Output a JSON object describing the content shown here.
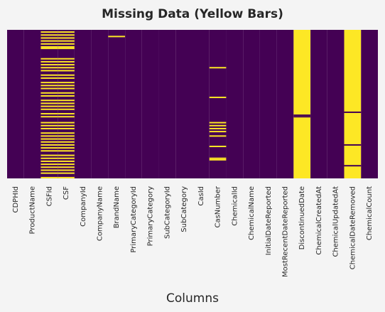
{
  "chart_data": {
    "type": "heatmap",
    "title": "Missing Data (Yellow Bars)",
    "xlabel": "Columns",
    "ylabel": "",
    "colors": {
      "present": "#440154",
      "missing": "#fde725"
    },
    "columns": [
      "CDPHId",
      "ProductName",
      "CSFId",
      "CSF",
      "CompanyId",
      "CompanyName",
      "BrandName",
      "PrimaryCategoryId",
      "PrimaryCategory",
      "SubCategoryId",
      "SubCategory",
      "CasId",
      "CasNumber",
      "ChemicalId",
      "ChemicalName",
      "InitialDateReported",
      "MostRecentDateReported",
      "DiscontinuedDate",
      "ChemicalCreatedAt",
      "ChemicalUpdatedAt",
      "ChemicalDateRemoved",
      "ChemicalCount"
    ],
    "missing_rows_fraction": {
      "CSFId": [
        0.01,
        0.03,
        0.05,
        0.07,
        0.09,
        0.11,
        0.12,
        0.19,
        0.21,
        0.23,
        0.25,
        0.27,
        0.3,
        0.32,
        0.35,
        0.37,
        0.39,
        0.42,
        0.44,
        0.47,
        0.49,
        0.51,
        0.53,
        0.56,
        0.58,
        0.62,
        0.64,
        0.66,
        0.69,
        0.71,
        0.73,
        0.75,
        0.77,
        0.79,
        0.81,
        0.84,
        0.86,
        0.88,
        0.9,
        0.92,
        0.94,
        0.96,
        0.99
      ],
      "CSF": [
        0.01,
        0.03,
        0.05,
        0.07,
        0.09,
        0.11,
        0.12,
        0.19,
        0.21,
        0.23,
        0.25,
        0.27,
        0.3,
        0.32,
        0.35,
        0.37,
        0.39,
        0.42,
        0.44,
        0.47,
        0.49,
        0.51,
        0.53,
        0.56,
        0.58,
        0.62,
        0.64,
        0.66,
        0.69,
        0.71,
        0.73,
        0.75,
        0.77,
        0.79,
        0.81,
        0.84,
        0.86,
        0.88,
        0.9,
        0.92,
        0.94,
        0.96,
        0.99
      ],
      "BrandName": [
        0.04
      ],
      "CasNumber": [
        0.25,
        0.45,
        0.62,
        0.64,
        0.66,
        0.68,
        0.71,
        0.78,
        0.86,
        0.87
      ]
    },
    "mostly_missing_columns": {
      "DiscontinuedDate": {
        "present_rows_fraction": [
          0.57,
          0.58
        ]
      },
      "ChemicalDateRemoved": {
        "present_rows_fraction": [
          0.55,
          0.77,
          0.91
        ]
      }
    },
    "ylim": [
      0,
      1
    ],
    "grid": false,
    "legend": "none"
  }
}
